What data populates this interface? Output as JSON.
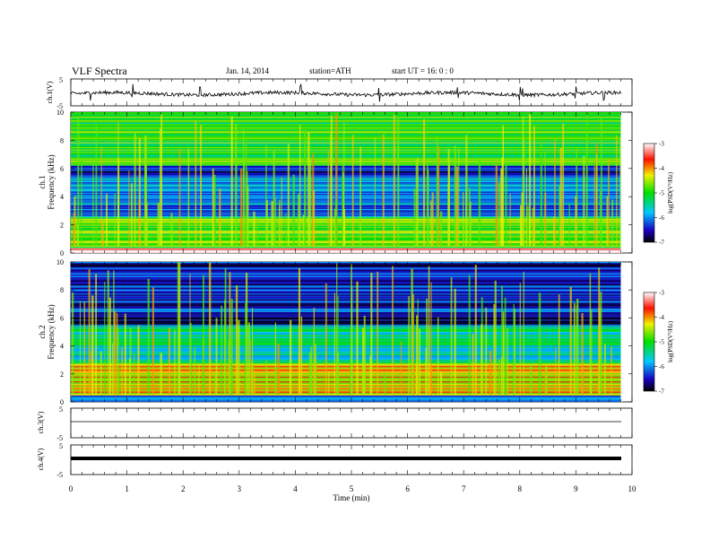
{
  "header": {
    "title": "VLF  Spectra",
    "date": "Jan. 14, 2014",
    "station": "station=ATH",
    "start": "start  UT  =   16: 0  : 0"
  },
  "chart_data": [
    {
      "type": "line",
      "panel": "ch1-waveform",
      "ylabel": "ch.1(V)",
      "ylim": [
        -5,
        5
      ],
      "yticks": [
        "5",
        "-5"
      ],
      "x_range_min": [
        0,
        9.8
      ],
      "baseline_v": -0.5,
      "spike_minutes": [
        0.35,
        1.1,
        2.3,
        4.1,
        5.5,
        6.9,
        8.0,
        8.05,
        9.0,
        9.5
      ],
      "color": "#000000"
    },
    {
      "type": "heatmap",
      "panel": "ch1-spectrogram",
      "ylabel": "ch.1",
      "ylabel2": "Frequency  (kHz)",
      "ylim": [
        0,
        10
      ],
      "yticks": [
        "0",
        "2",
        "4",
        "6",
        "8",
        "10"
      ],
      "colorbar": {
        "label": "log(PSD(V²/Hz)",
        "range": [
          -7,
          -3
        ],
        "ticks": [
          "-3",
          "-4",
          "-5",
          "-6",
          "-7"
        ]
      },
      "description_bands_khz": [
        {
          "from": 0,
          "to": 0.4,
          "level": -3.3
        },
        {
          "from": 0.4,
          "to": 2.6,
          "level": -4.8
        },
        {
          "from": 2.6,
          "to": 5.6,
          "level": -6.0
        },
        {
          "from": 5.6,
          "to": 6.2,
          "level": -6.5
        },
        {
          "from": 6.2,
          "to": 10,
          "level": -5.0
        }
      ]
    },
    {
      "type": "heatmap",
      "panel": "ch2-spectrogram",
      "ylabel": "ch.2",
      "ylabel2": "Frequency  (kHz)",
      "ylim": [
        0,
        10
      ],
      "yticks": [
        "0",
        "2",
        "4",
        "6",
        "8",
        "10"
      ],
      "colorbar": {
        "label": "log(PSD(V²/Hz)",
        "range": [
          -7,
          -3
        ],
        "ticks": [
          "-3",
          "-4",
          "-5",
          "-6",
          "-7"
        ]
      },
      "description_bands_khz": [
        {
          "from": 0,
          "to": 0.5,
          "level": -6.0
        },
        {
          "from": 0.5,
          "to": 2.8,
          "level": -4.2
        },
        {
          "from": 2.8,
          "to": 5.5,
          "level": -5.4
        },
        {
          "from": 5.5,
          "to": 6.3,
          "level": -6.6
        },
        {
          "from": 6.3,
          "to": 10,
          "level": -6.4
        }
      ]
    },
    {
      "type": "line",
      "panel": "ch3-waveform",
      "ylabel": "ch.3(V)",
      "ylim": [
        -5,
        5
      ],
      "yticks": [
        "5",
        "-5"
      ],
      "baseline_v": 0,
      "color": "#000000"
    },
    {
      "type": "line",
      "panel": "ch4-waveform",
      "ylabel": "ch.4(V)",
      "ylim": [
        -5,
        5
      ],
      "yticks": [
        "5",
        "-5"
      ],
      "baseline_v": 0,
      "color": "#000000"
    }
  ],
  "xaxis": {
    "label": "Time  (min)",
    "range": [
      0,
      10
    ],
    "ticks": [
      "0",
      "1",
      "2",
      "3",
      "4",
      "5",
      "6",
      "7",
      "8",
      "9",
      "10"
    ]
  }
}
